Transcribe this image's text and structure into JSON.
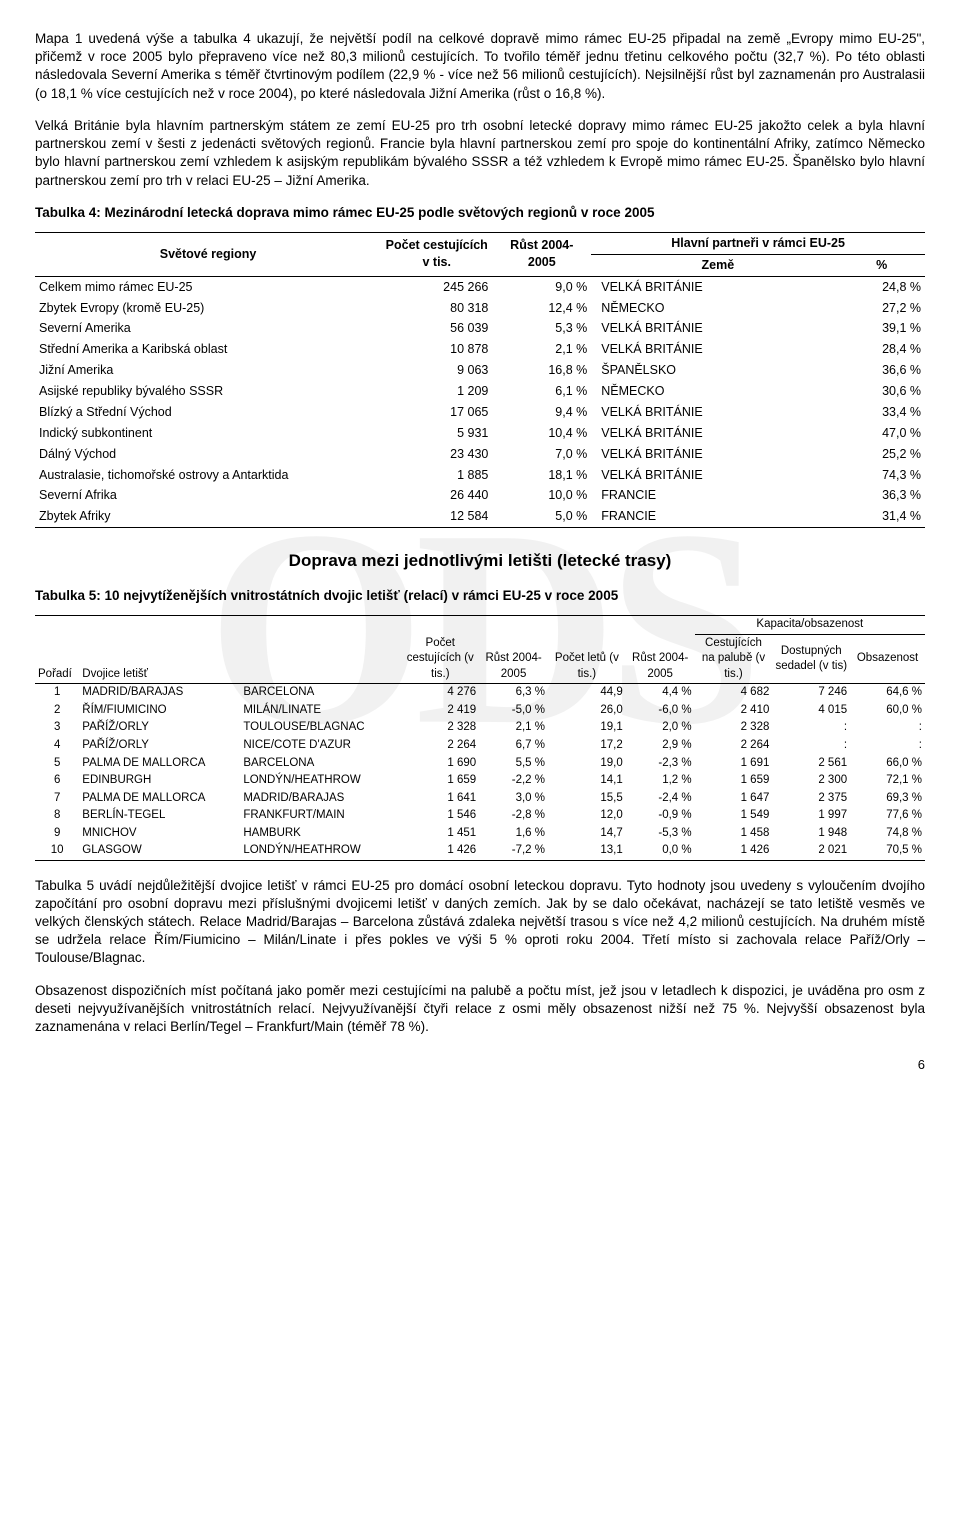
{
  "para1": "Mapa 1 uvedená výše a tabulka 4 ukazují, že největší podíl na celkové dopravě mimo rámec EU-25 připadal na země „Evropy mimo EU-25\", přičemž v roce 2005 bylo přepraveno více než 80,3 milionů cestujících. To tvořilo téměř jednu třetinu celkového počtu (32,7 %). Po této oblasti následovala Severní Amerika s téměř čtvrtinovým podílem (22,9 % - více než 56 milionů cestujících). Nejsilnější růst byl zaznamenán pro Australasii (o 18,1 % více cestujících než v roce 2004), po které následovala Jižní Amerika (růst o 16,8 %).",
  "para2": "Velká Británie byla hlavním partnerským státem ze zemí EU-25 pro trh osobní letecké dopravy mimo rámec EU-25 jakožto celek a byla hlavní partnerskou zemí v šesti z jedenácti světových regionů. Francie byla hlavní partnerskou zemí pro spoje do kontinentální Afriky, zatímco Německo bylo hlavní partnerskou zemí vzhledem k asijským republikám bývalého SSSR a též vzhledem k Evropě mimo rámec EU-25. Španělsko bylo hlavní partnerskou zemí pro trh v relaci EU-25 – Jižní Amerika.",
  "t4_title": "Tabulka 4: Mezinárodní letecká doprava mimo rámec EU-25 podle světových regionů v  roce 2005",
  "t4_h_regions": "Světové regiony",
  "t4_h_count": "Počet cestujících v  tis.",
  "t4_h_growth": "Růst 2004-2005",
  "t4_h_partners": "Hlavní partneři v  rámci EU-25",
  "t4_h_country": "Země",
  "t4_h_pct": "%",
  "t4_rows": [
    {
      "r": "Celkem mimo rámec EU-25",
      "n": "245 266",
      "g": "9,0 %",
      "c": "VELKÁ BRITÁNIE",
      "p": "24,8 %"
    },
    {
      "r": "Zbytek Evropy (kromě EU-25)",
      "n": "80 318",
      "g": "12,4 %",
      "c": "NĚMECKO",
      "p": "27,2 %"
    },
    {
      "r": "Severní Amerika",
      "n": "56 039",
      "g": "5,3 %",
      "c": "VELKÁ BRITÁNIE",
      "p": "39,1 %"
    },
    {
      "r": "Střední Amerika a Karibská oblast",
      "n": "10 878",
      "g": "2,1 %",
      "c": "VELKÁ BRITÁNIE",
      "p": "28,4 %"
    },
    {
      "r": "Jižní Amerika",
      "n": "9 063",
      "g": "16,8 %",
      "c": "ŠPANĚLSKO",
      "p": "36,6 %"
    },
    {
      "r": "Asijské republiky bývalého SSSR",
      "n": "1 209",
      "g": "6,1 %",
      "c": "NĚMECKO",
      "p": "30,6 %"
    },
    {
      "r": "Blízký a Střední Východ",
      "n": "17 065",
      "g": "9,4 %",
      "c": "VELKÁ BRITÁNIE",
      "p": "33,4 %"
    },
    {
      "r": "Indický subkontinent",
      "n": "5 931",
      "g": "10,4 %",
      "c": "VELKÁ BRITÁNIE",
      "p": "47,0 %"
    },
    {
      "r": "Dálný Východ",
      "n": "23 430",
      "g": "7,0 %",
      "c": "VELKÁ BRITÁNIE",
      "p": "25,2 %"
    },
    {
      "r": "Australasie, tichomořské ostrovy a Antarktida",
      "n": "1 885",
      "g": "18,1 %",
      "c": "VELKÁ BRITÁNIE",
      "p": "74,3 %"
    },
    {
      "r": "Severní Afrika",
      "n": "26 440",
      "g": "10,0 %",
      "c": "FRANCIE",
      "p": "36,3 %"
    },
    {
      "r": "Zbytek Afriky",
      "n": "12 584",
      "g": "5,0 %",
      "c": "FRANCIE",
      "p": "31,4 %"
    }
  ],
  "sec_title": "Doprava mezi jednotlivými letišti (letecké trasy)",
  "t5_title": "Tabulka 5: 10 nejvytíženějších vnitrostátních dvojic letišť (relací) v  rámci EU-25 v roce 2005",
  "t5_h_rank": "Pořadí",
  "t5_h_pair": "Dvojice letišť",
  "t5_h_pax": "Počet cestujících (v tis.)",
  "t5_h_g1": "Růst 2004-2005",
  "t5_h_flights": "Počet letů (v tis.)",
  "t5_h_g2": "Růst 2004-2005",
  "t5_h_cap": "Kapacita/obsazenost",
  "t5_h_paxob": "Cestujících na palubě (v tis.)",
  "t5_h_seat": "Dostupných sedadel (v tis)",
  "t5_h_occ": "Obsazenost",
  "t5_rows": [
    {
      "k": "1",
      "a": "MADRID/BARAJAS",
      "b": "BARCELONA",
      "n": "4 276",
      "g1": "6,3 %",
      "f": "44,9",
      "g2": "4,4 %",
      "p": "4 682",
      "s": "7 246",
      "o": "64,6 %"
    },
    {
      "k": "2",
      "a": "ŘÍM/FIUMICINO",
      "b": "MILÁN/LINATE",
      "n": "2 419",
      "g1": "-5,0 %",
      "f": "26,0",
      "g2": "-6,0 %",
      "p": "2 410",
      "s": "4 015",
      "o": "60,0 %"
    },
    {
      "k": "3",
      "a": "PAŘÍŽ/ORLY",
      "b": "TOULOUSE/BLAGNAC",
      "n": "2 328",
      "g1": "2,1 %",
      "f": "19,1",
      "g2": "2,0 %",
      "p": "2 328",
      "s": ":",
      "o": ":"
    },
    {
      "k": "4",
      "a": "PAŘÍŽ/ORLY",
      "b": "NICE/COTE D'AZUR",
      "n": "2 264",
      "g1": "6,7 %",
      "f": "17,2",
      "g2": "2,9 %",
      "p": "2 264",
      "s": ":",
      "o": ":"
    },
    {
      "k": "5",
      "a": "PALMA DE MALLORCA",
      "b": "BARCELONA",
      "n": "1 690",
      "g1": "5,5 %",
      "f": "19,0",
      "g2": "-2,3 %",
      "p": "1 691",
      "s": "2 561",
      "o": "66,0 %"
    },
    {
      "k": "6",
      "a": "EDINBURGH",
      "b": "LONDÝN/HEATHROW",
      "n": "1 659",
      "g1": "-2,2 %",
      "f": "14,1",
      "g2": "1,2 %",
      "p": "1 659",
      "s": "2 300",
      "o": "72,1 %"
    },
    {
      "k": "7",
      "a": "PALMA DE MALLORCA",
      "b": "MADRID/BARAJAS",
      "n": "1 641",
      "g1": "3,0 %",
      "f": "15,5",
      "g2": "-2,4 %",
      "p": "1 647",
      "s": "2 375",
      "o": "69,3 %"
    },
    {
      "k": "8",
      "a": "BERLÍN-TEGEL",
      "b": "FRANKFURT/MAIN",
      "n": "1 546",
      "g1": "-2,8 %",
      "f": "12,0",
      "g2": "-0,9 %",
      "p": "1 549",
      "s": "1 997",
      "o": "77,6 %"
    },
    {
      "k": "9",
      "a": "MNICHOV",
      "b": "HAMBURK",
      "n": "1 451",
      "g1": "1,6 %",
      "f": "14,7",
      "g2": "-5,3 %",
      "p": "1 458",
      "s": "1 948",
      "o": "74,8 %"
    },
    {
      "k": "10",
      "a": "GLASGOW",
      "b": "LONDÝN/HEATHROW",
      "n": "1 426",
      "g1": "-7,2 %",
      "f": "13,1",
      "g2": "0,0 %",
      "p": "1 426",
      "s": "2 021",
      "o": "70,5 %"
    }
  ],
  "para3": "Tabulka 5 uvádí nejdůležitější dvojice letišť v rámci EU-25 pro domácí osobní leteckou dopravu. Tyto hodnoty jsou uvedeny s vyloučením dvojího započítání pro osobní dopravu mezi příslušnými dvojicemi letišť v daných zemích. Jak by se dalo očekávat, nacházejí se tato letiště vesměs ve velkých členských státech. Relace Madrid/Barajas – Barcelona zůstává zdaleka největší trasou s více než 4,2 milionů cestujících. Na druhém místě se udržela relace Řím/Fiumicino – Milán/Linate i přes pokles ve výši 5 % oproti roku 2004. Třetí místo si zachovala relace Paříž/Orly – Toulouse/Blagnac.",
  "para4": "Obsazenost dispozičních míst počítaná jako poměr mezi cestujícími na palubě a počtu míst, jež jsou v letadlech k dispozici, je uváděna pro osm z deseti nejvyužívanějších vnitrostátních relací. Nejvyužívanější čtyři relace z osmi měly obsazenost nižší než 75 %. Nejvyšší obsazenost byla zaznamenána v relaci Berlín/Tegel – Frankfurt/Main (téměř 78 %).",
  "page_num": "6",
  "watermark": "ODS"
}
